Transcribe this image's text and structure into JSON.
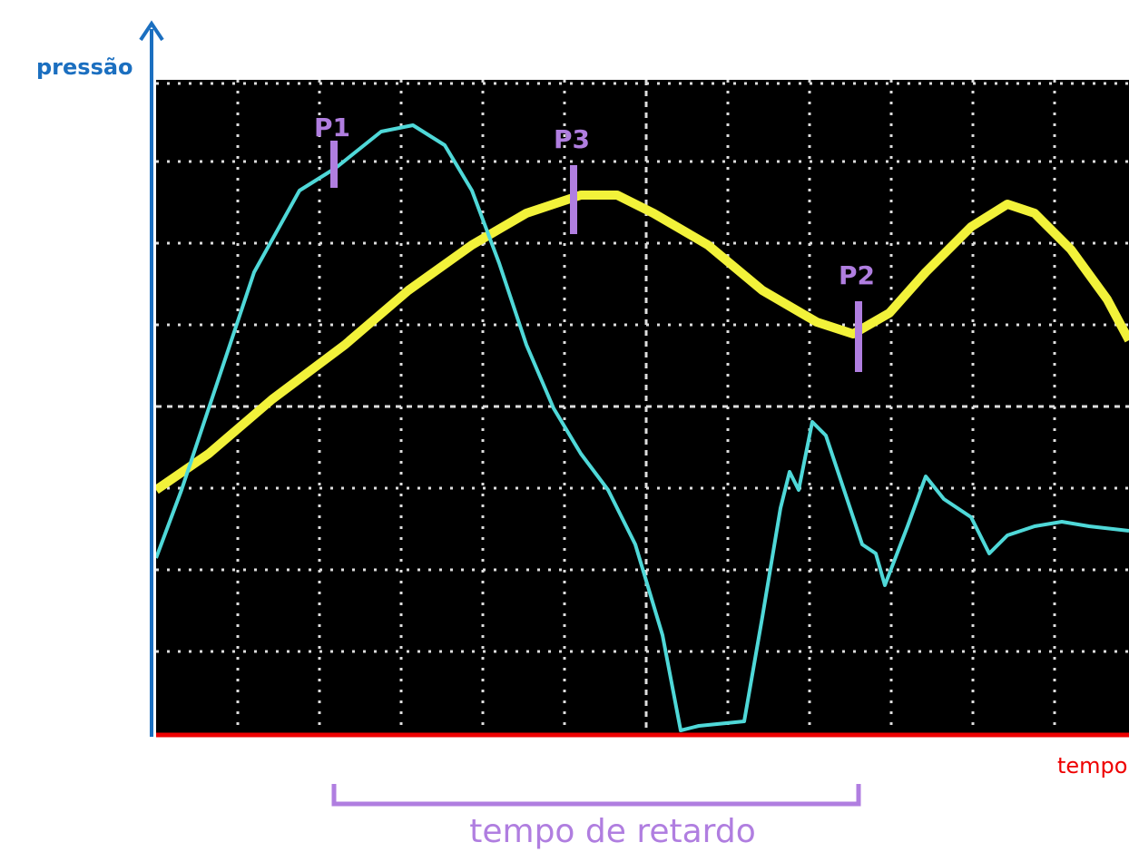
{
  "labels": {
    "y_axis": "pressão",
    "x_axis": "tempo",
    "markers": [
      "P1",
      "P3",
      "P2"
    ],
    "interval": "tempo de retardo"
  }
}
